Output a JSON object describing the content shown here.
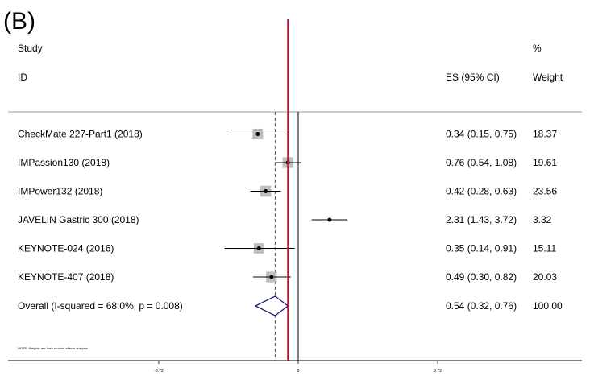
{
  "panel_label": "(B)",
  "headers": {
    "study": "Study",
    "id": "ID",
    "es": "ES (95% CI)",
    "pct": "%",
    "weight": "Weight"
  },
  "note": "NOTE: Weights are from random effects analysis",
  "chart_data": {
    "type": "forest",
    "x_scale": "log",
    "x_ticks": [
      {
        "value": 0.0242,
        "label": "-3.72"
      },
      {
        "value": 1,
        "label": "0"
      },
      {
        "value": 41.3,
        "label": "3.72"
      }
    ],
    "null_line": 1,
    "overall_line": 0.54,
    "studies": [
      {
        "name": "CheckMate 227-Part1 (2018)",
        "es": 0.34,
        "lo": 0.15,
        "hi": 0.75,
        "es_text": "0.34 (0.15, 0.75)",
        "weight": 18.37,
        "weight_text": "18.37"
      },
      {
        "name": "IMPassion130 (2018)",
        "es": 0.76,
        "lo": 0.54,
        "hi": 1.08,
        "es_text": "0.76 (0.54, 1.08)",
        "weight": 19.61,
        "weight_text": "19.61"
      },
      {
        "name": "IMPower132 (2018)",
        "es": 0.42,
        "lo": 0.28,
        "hi": 0.63,
        "es_text": "0.42 (0.28, 0.63)",
        "weight": 23.56,
        "weight_text": "23.56"
      },
      {
        "name": "JAVELIN Gastric 300 (2018)",
        "es": 2.31,
        "lo": 1.43,
        "hi": 3.72,
        "es_text": "2.31 (1.43, 3.72)",
        "weight": 3.32,
        "weight_text": "3.32"
      },
      {
        "name": "KEYNOTE-024 (2016)",
        "es": 0.35,
        "lo": 0.14,
        "hi": 0.91,
        "es_text": "0.35 (0.14, 0.91)",
        "weight": 15.11,
        "weight_text": "15.11"
      },
      {
        "name": "KEYNOTE-407 (2018)",
        "es": 0.49,
        "lo": 0.3,
        "hi": 0.82,
        "es_text": "0.49 (0.30, 0.82)",
        "weight": 20.03,
        "weight_text": "20.03"
      }
    ],
    "overall": {
      "name": "Overall  (I-squared = 68.0%, p = 0.008)",
      "es": 0.54,
      "lo": 0.32,
      "hi": 0.76,
      "es_text": "0.54 (0.32, 0.76)",
      "weight_text": "100.00"
    },
    "colors": {
      "null_line": "#c8102e",
      "overall_line": "#c8102e",
      "diamond": "#1a237e",
      "box": "#bdbdbd"
    }
  }
}
